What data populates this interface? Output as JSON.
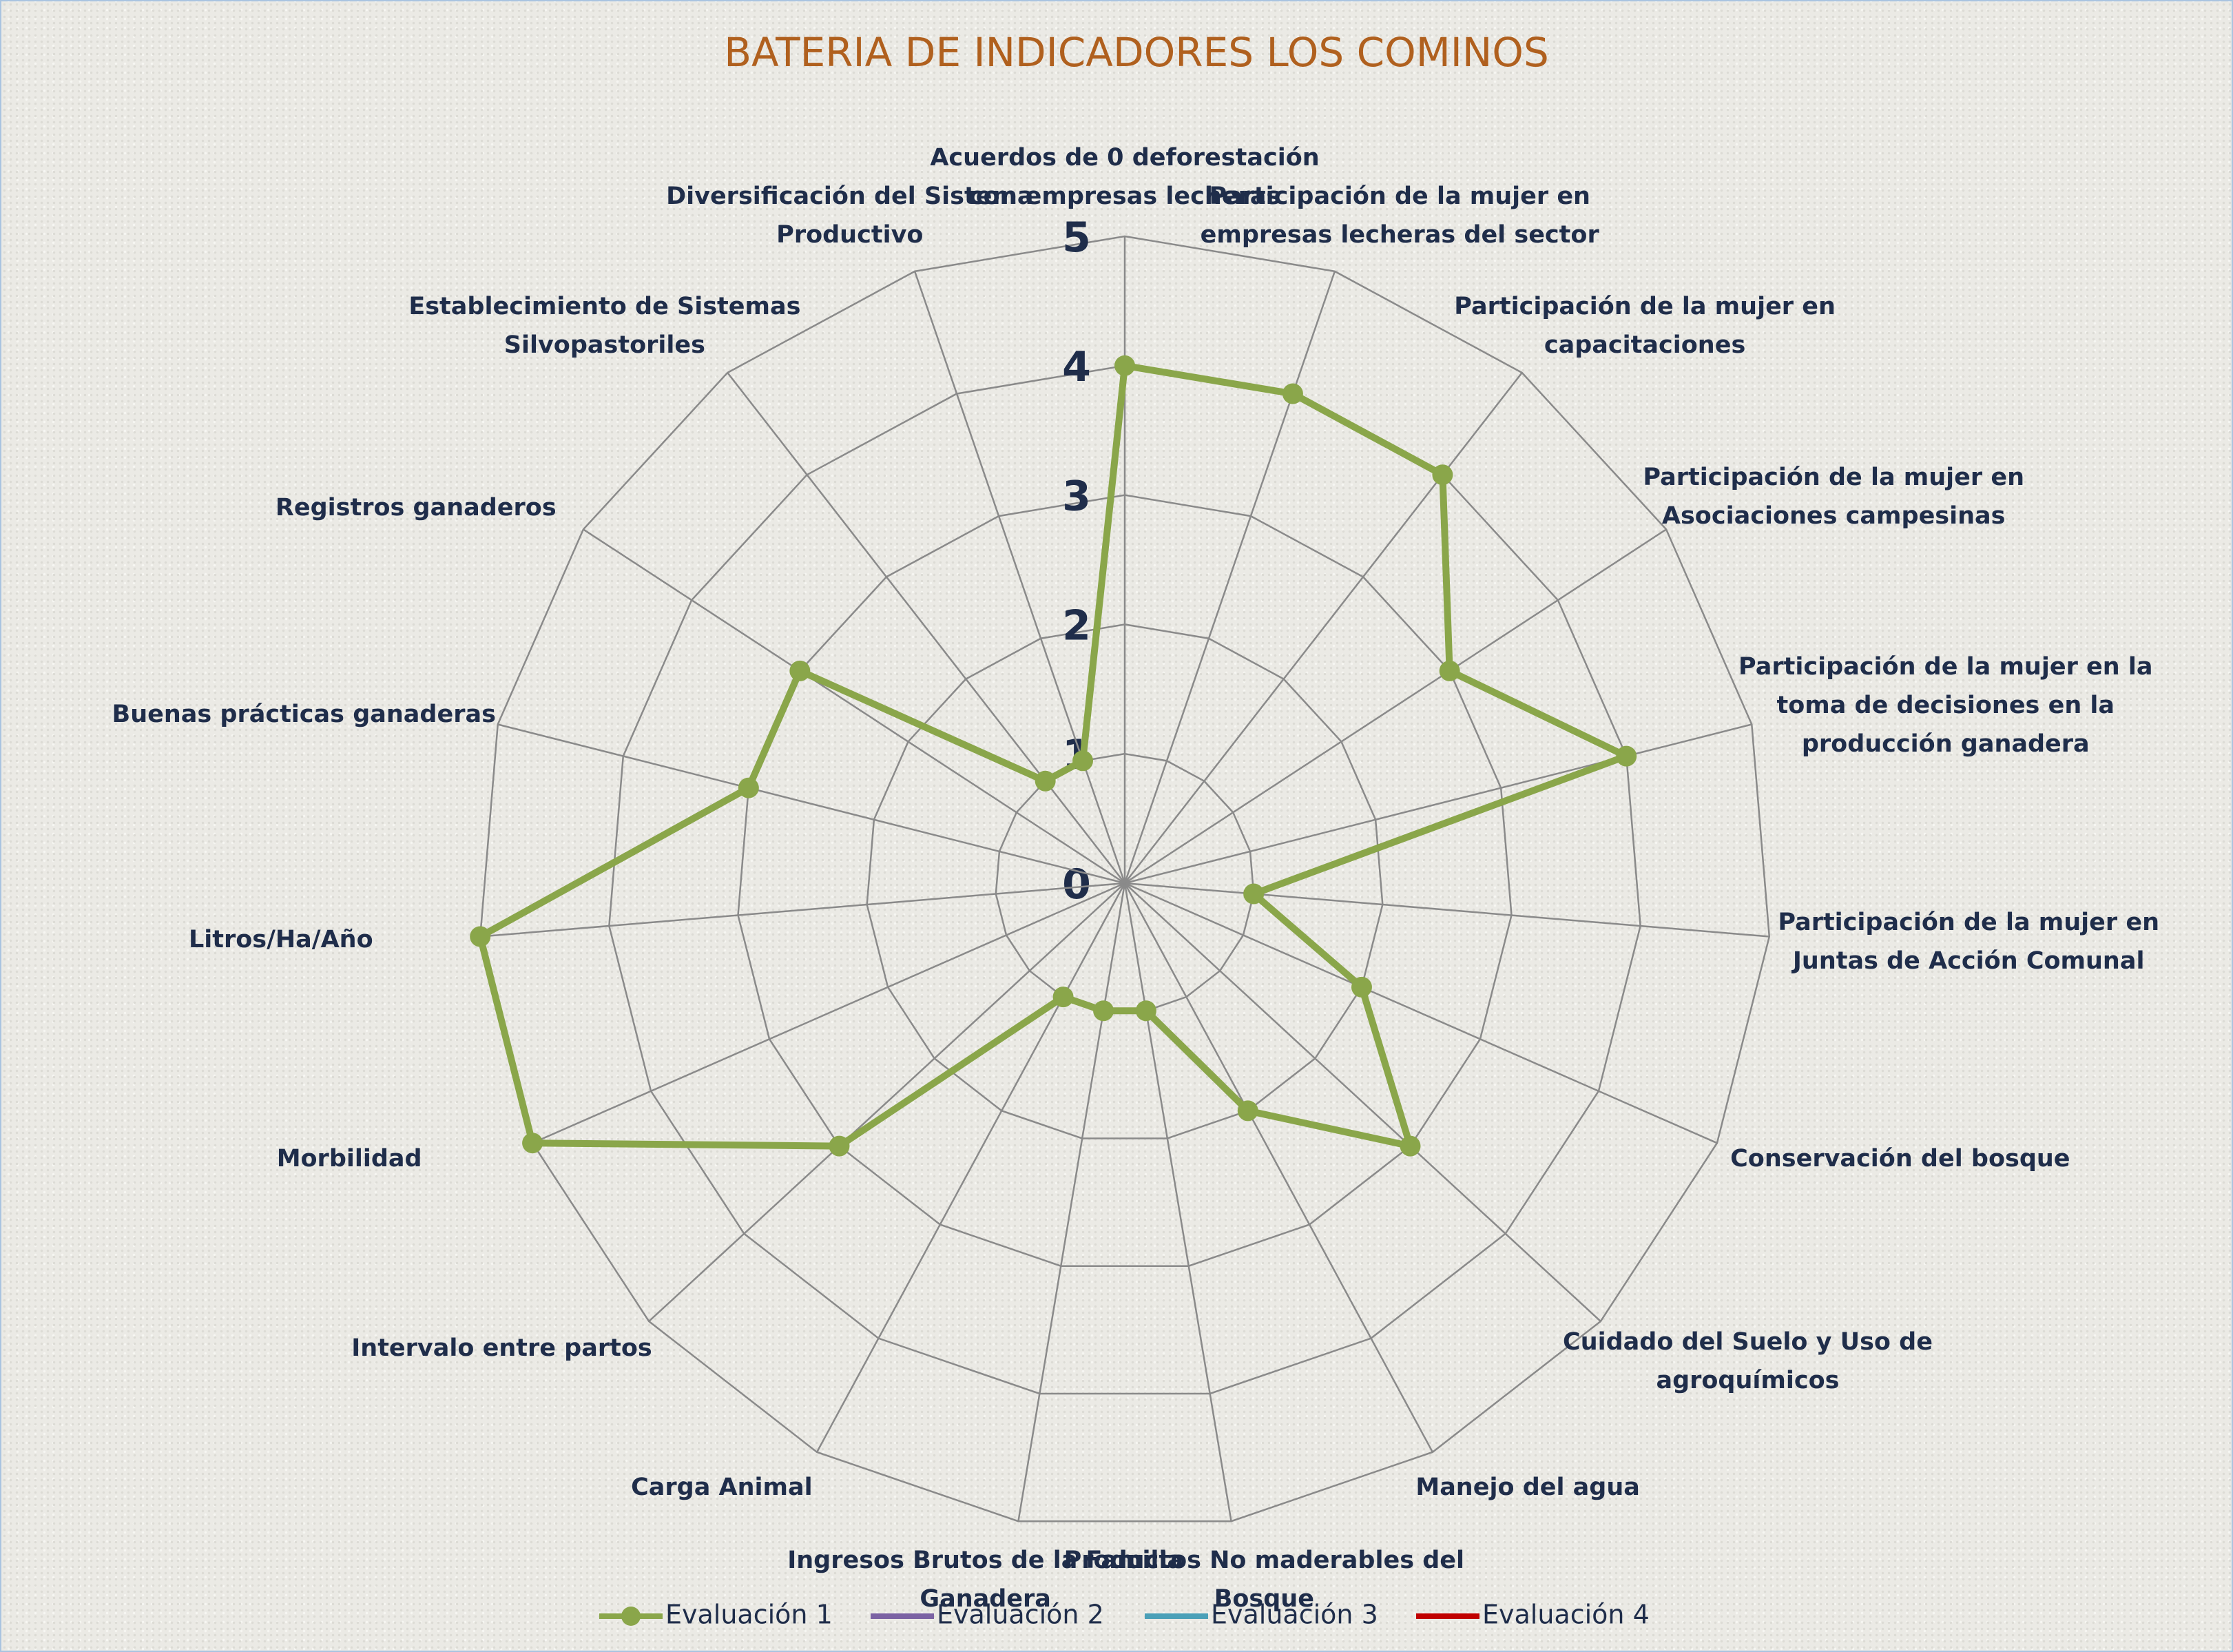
{
  "chart_data": {
    "type": "radar",
    "title": "BATERIA DE INDICADORES LOS COMINOS",
    "categories": [
      "Acuerdos de 0 deforestación con empresas lecheras",
      "Participación de la mujer en empresas lecheras del sector",
      "Participación de la mujer en capacitaciones",
      "Participación de la mujer en Asociaciones campesinas",
      "Participación de la mujer en la toma de decisiones en la producción ganadera",
      "Participación de la mujer en Juntas de Acción Comunal",
      "Conservación del bosque",
      "Cuidado del Suelo y Uso de agroquímicos",
      "Manejo del agua",
      "Productos No maderables del Bosque",
      "Ingresos Brutos de la Familia Ganadera",
      "Carga Animal",
      "Intervalo entre partos",
      "Morbilidad",
      "Litros/Ha/Año",
      "Buenas prácticas ganaderas",
      "Registros ganaderos",
      "Establecimiento de Sistemas Silvopastoriles",
      "Diversificación del Sistema Productivo"
    ],
    "series": [
      {
        "name": "Evaluación 1",
        "color": "#8aa64a",
        "values": [
          4,
          4,
          4,
          3,
          4,
          1,
          2,
          3,
          2,
          1,
          1,
          1,
          3,
          5,
          5,
          3,
          3,
          1,
          1
        ]
      },
      {
        "name": "Evaluación 2",
        "color": "#7b62a3",
        "values": [
          null,
          null,
          null,
          null,
          null,
          null,
          null,
          null,
          null,
          null,
          null,
          null,
          null,
          null,
          null,
          null,
          null,
          null,
          null
        ]
      },
      {
        "name": "Evaluación 3",
        "color": "#4ba0b8",
        "values": [
          null,
          null,
          null,
          null,
          null,
          null,
          null,
          null,
          null,
          null,
          null,
          null,
          null,
          null,
          null,
          null,
          null,
          null,
          null
        ]
      },
      {
        "name": "Evaluación 4",
        "color": "#c00000",
        "values": [
          null,
          null,
          null,
          null,
          null,
          null,
          null,
          null,
          null,
          null,
          null,
          null,
          null,
          null,
          null,
          null,
          null,
          null,
          null
        ]
      }
    ],
    "ylim": [
      0,
      5
    ],
    "yticks": [
      0,
      1,
      2,
      3,
      4,
      5
    ],
    "grid": true,
    "legend": "bottom"
  }
}
